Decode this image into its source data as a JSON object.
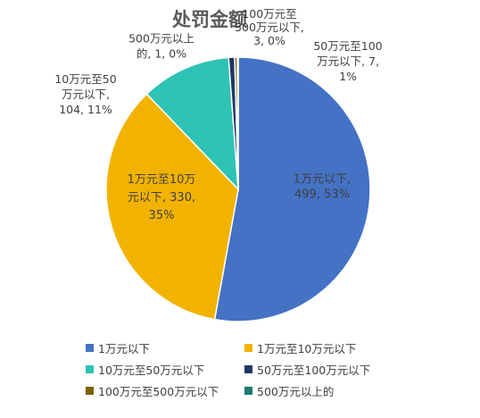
{
  "chart_data": {
    "type": "pie",
    "title": "处罚金额",
    "start_angle_deg": 0,
    "direction": "clockwise",
    "legend_position": "bottom",
    "slices": [
      {
        "name": "1万元以下",
        "value": 499,
        "percent": "53%",
        "color": "#4472C4",
        "label_lines": [
          "1万元以下,",
          "499, 53%"
        ]
      },
      {
        "name": "1万元至10万元以下",
        "value": 330,
        "percent": "35%",
        "color": "#F2B300",
        "label_lines": [
          "1万元至10万",
          "元以下, 330,",
          "35%"
        ]
      },
      {
        "name": "10万元至50万元以下",
        "value": 104,
        "percent": "11%",
        "color": "#2EC3B4",
        "label_lines": [
          "10万元至50",
          "万元以下,",
          "104, 11%"
        ]
      },
      {
        "name": "50万元至100万元以下",
        "value": 7,
        "percent": "1%",
        "color": "#1F3864",
        "label_lines": [
          "50万元至100",
          "万元以下, 7,",
          "1%"
        ]
      },
      {
        "name": "100万元至500万元以下",
        "value": 3,
        "percent": "0%",
        "color": "#7F6000",
        "label_lines": [
          "100万元至",
          "500万元以下,",
          "3, 0%"
        ]
      },
      {
        "name": "500万元以上的",
        "value": 1,
        "percent": "0%",
        "color": "#1E7A6E",
        "label_lines": [
          "500万元以上",
          "的, 1, 0%"
        ]
      }
    ]
  }
}
